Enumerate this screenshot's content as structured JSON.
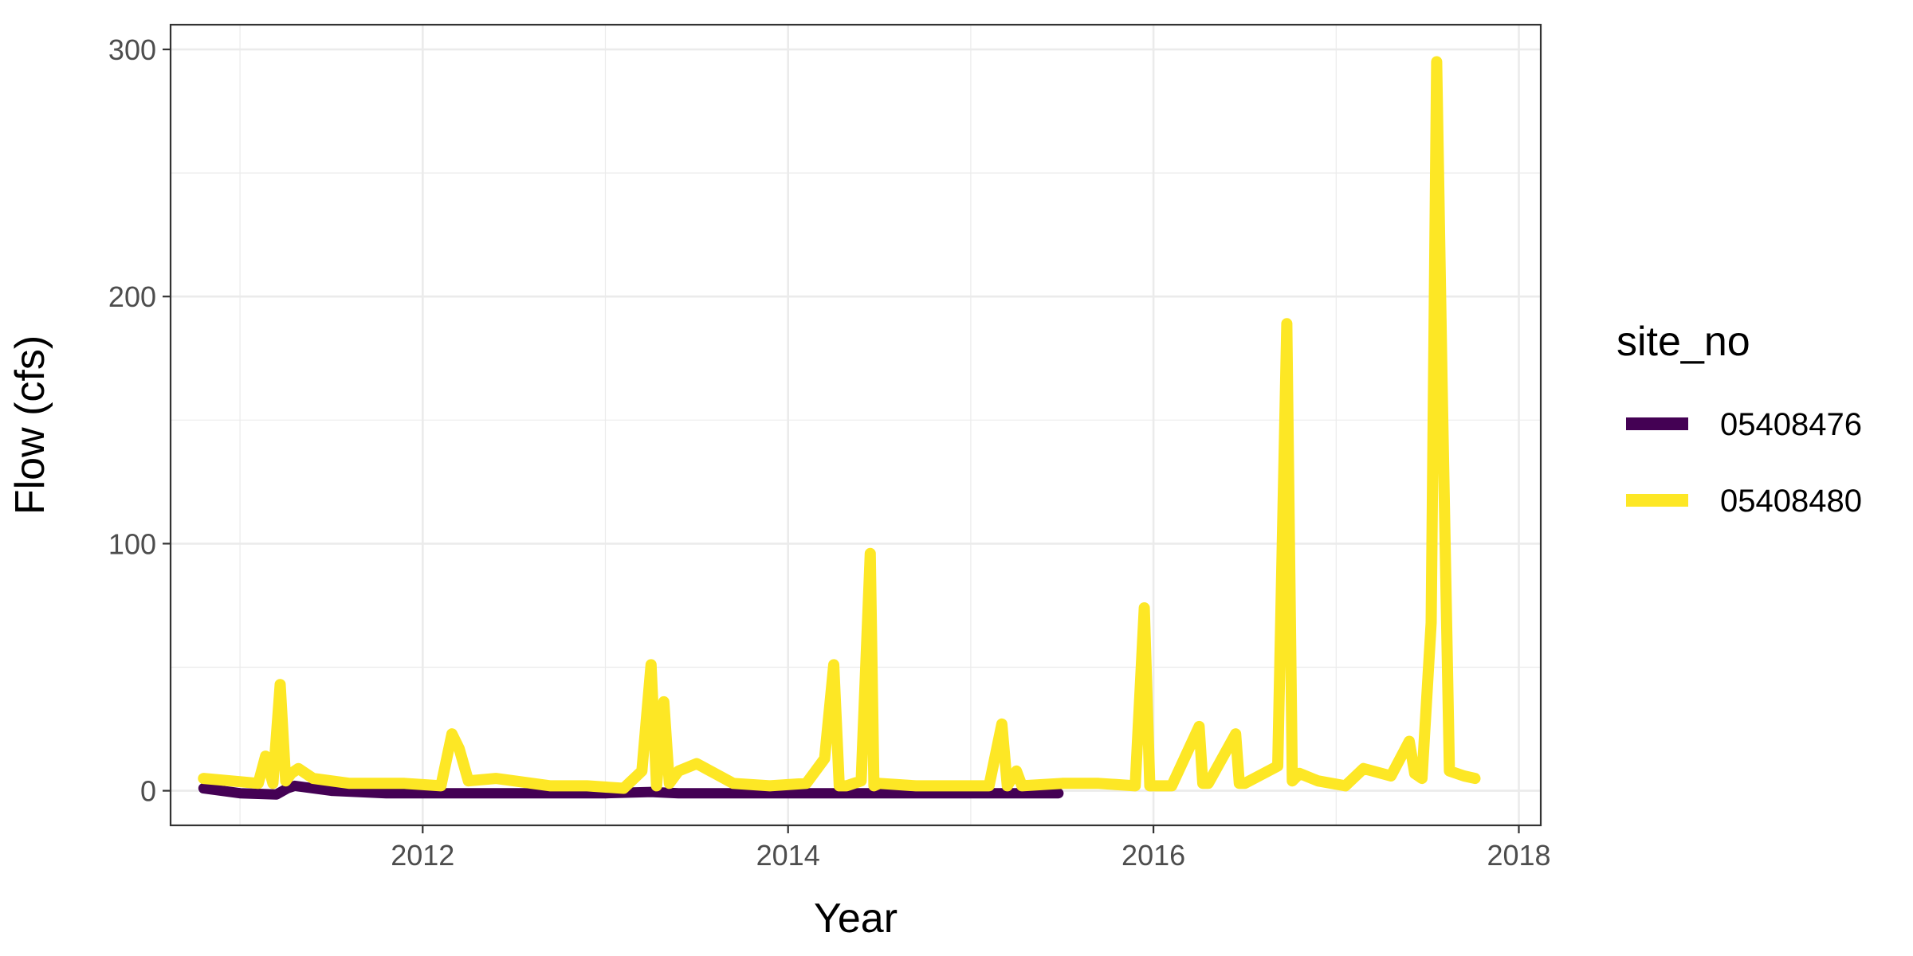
{
  "chart_data": {
    "type": "line",
    "title": "",
    "xlabel": "Year",
    "ylabel": "Flow (cfs)",
    "xlim": [
      2010.62,
      2018.12
    ],
    "ylim": [
      -14,
      310
    ],
    "x_ticks": [
      2012,
      2014,
      2016,
      2018
    ],
    "x_tick_labels": [
      "2012",
      "2014",
      "2016",
      "2018"
    ],
    "y_ticks": [
      0,
      100,
      200,
      300
    ],
    "y_tick_labels": [
      "0",
      "100",
      "200",
      "300"
    ],
    "grid": true,
    "legend": {
      "title": "site_no",
      "position": "right"
    },
    "series": [
      {
        "name": "05408476",
        "color": "#440154",
        "x": [
          2010.8,
          2011.0,
          2011.2,
          2011.26,
          2011.3,
          2011.5,
          2011.8,
          2012.2,
          2012.6,
          2013.0,
          2013.25,
          2013.4,
          2013.8,
          2014.2,
          2014.5,
          2014.8,
          2015.2,
          2015.48
        ],
        "y": [
          1,
          -1,
          -1.5,
          1,
          2,
          0,
          -1,
          -1,
          -1,
          -1,
          -0.5,
          -1,
          -1,
          -1,
          -1,
          -1,
          -1,
          -1
        ]
      },
      {
        "name": "05408480",
        "color": "#fde725",
        "x": [
          2010.8,
          2010.95,
          2011.1,
          2011.14,
          2011.18,
          2011.22,
          2011.25,
          2011.28,
          2011.32,
          2011.4,
          2011.6,
          2011.9,
          2012.1,
          2012.16,
          2012.2,
          2012.25,
          2012.4,
          2012.7,
          2012.9,
          2013.1,
          2013.2,
          2013.25,
          2013.28,
          2013.32,
          2013.35,
          2013.4,
          2013.5,
          2013.7,
          2013.9,
          2014.1,
          2014.2,
          2014.25,
          2014.28,
          2014.32,
          2014.4,
          2014.45,
          2014.47,
          2014.5,
          2014.7,
          2014.9,
          2015.1,
          2015.17,
          2015.2,
          2015.25,
          2015.28,
          2015.5,
          2015.7,
          2015.9,
          2015.95,
          2015.98,
          2016.1,
          2016.25,
          2016.27,
          2016.3,
          2016.45,
          2016.47,
          2016.5,
          2016.68,
          2016.73,
          2016.76,
          2016.8,
          2016.9,
          2017.05,
          2017.15,
          2017.3,
          2017.4,
          2017.43,
          2017.47,
          2017.52,
          2017.55,
          2017.58,
          2017.62,
          2017.7,
          2017.76
        ],
        "y": [
          5,
          4,
          3,
          14,
          3,
          43,
          4,
          7,
          9,
          5,
          3,
          3,
          2,
          23,
          17,
          4,
          5,
          2,
          2,
          1,
          8,
          51,
          2,
          36,
          3,
          8,
          11,
          3,
          2,
          3,
          13,
          51,
          2,
          2,
          4,
          96,
          2,
          3,
          2,
          2,
          2,
          27,
          2,
          8,
          2,
          3,
          3,
          2,
          74,
          2,
          2,
          26,
          3,
          3,
          23,
          3,
          3,
          10,
          189,
          4,
          7,
          4,
          2,
          9,
          6,
          20,
          7,
          5,
          68,
          295,
          165,
          8,
          6,
          5
        ]
      }
    ]
  }
}
